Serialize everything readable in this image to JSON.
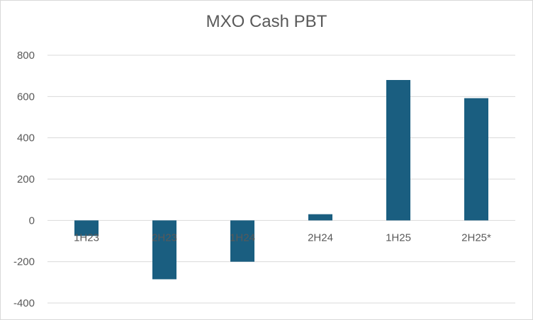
{
  "chart_data": {
    "type": "bar",
    "title": "MXO Cash PBT",
    "categories": [
      "1H23",
      "2H23",
      "1H24",
      "2H24",
      "1H25",
      "2H25*"
    ],
    "values": [
      -75,
      -285,
      -200,
      30,
      680,
      592
    ],
    "ylim": [
      -400,
      800
    ],
    "yticks": [
      -400,
      -200,
      0,
      200,
      400,
      600,
      800
    ],
    "grid": true,
    "legend": "none",
    "bar_color": "#1a5e80",
    "grid_color": "#d9d9d9"
  }
}
